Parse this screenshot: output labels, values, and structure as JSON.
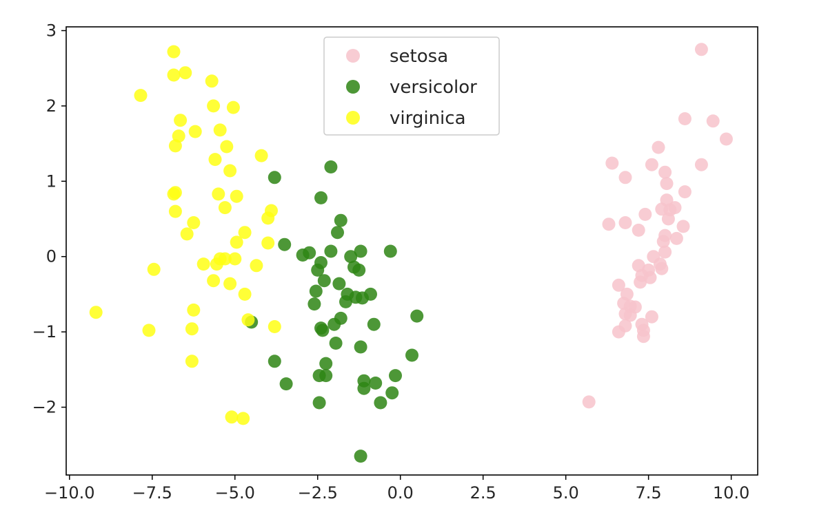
{
  "chart_data": {
    "type": "scatter",
    "title": "",
    "xlabel": "",
    "ylabel": "",
    "xlim": [
      -10.1,
      10.8
    ],
    "ylim": [
      -2.9,
      3.05
    ],
    "xticks": [
      -10.0,
      -7.5,
      -5.0,
      -2.5,
      0.0,
      2.5,
      5.0,
      7.5,
      10.0
    ],
    "xtick_labels": [
      "−10.0",
      "−7.5",
      "−5.0",
      "−2.5",
      "0.0",
      "2.5",
      "5.0",
      "7.5",
      "10.0"
    ],
    "yticks": [
      -2,
      -1,
      0,
      1,
      2,
      3
    ],
    "ytick_labels": [
      "−2",
      "−1",
      "0",
      "1",
      "2",
      "3"
    ],
    "grid": false,
    "legend_position": "top-center",
    "series": [
      {
        "name": "setosa",
        "color": "#f7c3cb",
        "points": [
          [
            9.1,
            2.75
          ],
          [
            8.6,
            1.83
          ],
          [
            9.45,
            1.8
          ],
          [
            9.85,
            1.56
          ],
          [
            7.8,
            1.45
          ],
          [
            6.4,
            1.24
          ],
          [
            7.6,
            1.22
          ],
          [
            9.1,
            1.22
          ],
          [
            8.0,
            1.12
          ],
          [
            6.8,
            1.05
          ],
          [
            8.05,
            0.97
          ],
          [
            8.6,
            0.86
          ],
          [
            8.05,
            0.75
          ],
          [
            7.9,
            0.63
          ],
          [
            8.3,
            0.65
          ],
          [
            8.15,
            0.62
          ],
          [
            7.4,
            0.56
          ],
          [
            8.1,
            0.5
          ],
          [
            6.3,
            0.43
          ],
          [
            6.8,
            0.45
          ],
          [
            7.2,
            0.35
          ],
          [
            8.55,
            0.4
          ],
          [
            8.0,
            0.28
          ],
          [
            8.35,
            0.24
          ],
          [
            7.95,
            0.2
          ],
          [
            8.0,
            0.06
          ],
          [
            7.65,
            0.0
          ],
          [
            7.85,
            -0.1
          ],
          [
            7.2,
            -0.12
          ],
          [
            7.5,
            -0.18
          ],
          [
            7.9,
            -0.16
          ],
          [
            7.3,
            -0.25
          ],
          [
            7.55,
            -0.28
          ],
          [
            7.25,
            -0.34
          ],
          [
            6.6,
            -0.38
          ],
          [
            6.85,
            -0.5
          ],
          [
            6.75,
            -0.62
          ],
          [
            6.95,
            -0.66
          ],
          [
            7.1,
            -0.67
          ],
          [
            6.8,
            -0.76
          ],
          [
            6.95,
            -0.78
          ],
          [
            7.3,
            -0.9
          ],
          [
            7.6,
            -0.8
          ],
          [
            6.8,
            -0.92
          ],
          [
            6.6,
            -1.0
          ],
          [
            7.35,
            -0.98
          ],
          [
            7.35,
            -1.06
          ],
          [
            5.7,
            -1.93
          ]
        ]
      },
      {
        "name": "versicolor",
        "color": "#2e8514",
        "points": [
          [
            -2.1,
            1.19
          ],
          [
            -3.8,
            1.05
          ],
          [
            -2.4,
            0.78
          ],
          [
            -1.8,
            0.48
          ],
          [
            -1.9,
            0.32
          ],
          [
            -3.5,
            0.16
          ],
          [
            -2.75,
            0.05
          ],
          [
            -2.95,
            0.02
          ],
          [
            -2.1,
            0.07
          ],
          [
            -1.2,
            0.07
          ],
          [
            -0.3,
            0.07
          ],
          [
            -1.5,
            0.0
          ],
          [
            -2.4,
            -0.08
          ],
          [
            -2.5,
            -0.18
          ],
          [
            -1.4,
            -0.14
          ],
          [
            -1.25,
            -0.18
          ],
          [
            -2.3,
            -0.32
          ],
          [
            -1.85,
            -0.36
          ],
          [
            -1.6,
            -0.5
          ],
          [
            -2.55,
            -0.46
          ],
          [
            -1.35,
            -0.54
          ],
          [
            -1.15,
            -0.55
          ],
          [
            -0.9,
            -0.5
          ],
          [
            -1.65,
            -0.6
          ],
          [
            -2.6,
            -0.63
          ],
          [
            -1.8,
            -0.82
          ],
          [
            -0.8,
            -0.9
          ],
          [
            -2.0,
            -0.9
          ],
          [
            -2.35,
            -0.98
          ],
          [
            -2.4,
            -0.95
          ],
          [
            0.5,
            -0.79
          ],
          [
            -4.5,
            -0.87
          ],
          [
            -1.95,
            -1.15
          ],
          [
            -1.2,
            -1.2
          ],
          [
            -3.8,
            -1.39
          ],
          [
            0.35,
            -1.31
          ],
          [
            -2.25,
            -1.42
          ],
          [
            -2.45,
            -1.58
          ],
          [
            -2.25,
            -1.58
          ],
          [
            -0.15,
            -1.58
          ],
          [
            -1.1,
            -1.65
          ],
          [
            -1.1,
            -1.75
          ],
          [
            -0.75,
            -1.68
          ],
          [
            -3.45,
            -1.69
          ],
          [
            -0.25,
            -1.81
          ],
          [
            -2.45,
            -1.94
          ],
          [
            -0.6,
            -1.94
          ],
          [
            -1.2,
            -2.65
          ]
        ]
      },
      {
        "name": "virginica",
        "color": "#ffff14",
        "points": [
          [
            -6.85,
            2.72
          ],
          [
            -6.5,
            2.44
          ],
          [
            -6.85,
            2.41
          ],
          [
            -5.7,
            2.33
          ],
          [
            -7.85,
            2.14
          ],
          [
            -5.65,
            2.0
          ],
          [
            -5.05,
            1.98
          ],
          [
            -6.65,
            1.81
          ],
          [
            -6.2,
            1.66
          ],
          [
            -5.45,
            1.68
          ],
          [
            -6.7,
            1.6
          ],
          [
            -6.8,
            1.47
          ],
          [
            -5.25,
            1.46
          ],
          [
            -4.2,
            1.34
          ],
          [
            -5.6,
            1.29
          ],
          [
            -5.15,
            1.14
          ],
          [
            -6.8,
            0.85
          ],
          [
            -6.85,
            0.83
          ],
          [
            -5.5,
            0.83
          ],
          [
            -4.95,
            0.8
          ],
          [
            -5.3,
            0.65
          ],
          [
            -6.8,
            0.6
          ],
          [
            -3.9,
            0.61
          ],
          [
            -4.0,
            0.51
          ],
          [
            -6.25,
            0.45
          ],
          [
            -4.7,
            0.32
          ],
          [
            -6.45,
            0.3
          ],
          [
            -4.95,
            0.19
          ],
          [
            -4.0,
            0.18
          ],
          [
            -5.45,
            -0.03
          ],
          [
            -5.3,
            -0.03
          ],
          [
            -5.0,
            -0.03
          ],
          [
            -5.55,
            -0.1
          ],
          [
            -5.95,
            -0.1
          ],
          [
            -4.35,
            -0.12
          ],
          [
            -7.45,
            -0.17
          ],
          [
            -5.65,
            -0.32
          ],
          [
            -5.15,
            -0.36
          ],
          [
            -4.7,
            -0.5
          ],
          [
            -6.25,
            -0.71
          ],
          [
            -9.2,
            -0.74
          ],
          [
            -4.6,
            -0.84
          ],
          [
            -3.8,
            -0.93
          ],
          [
            -6.3,
            -0.96
          ],
          [
            -7.6,
            -0.98
          ],
          [
            -6.3,
            -1.39
          ],
          [
            -5.1,
            -2.13
          ],
          [
            -4.75,
            -2.15
          ]
        ]
      }
    ]
  }
}
